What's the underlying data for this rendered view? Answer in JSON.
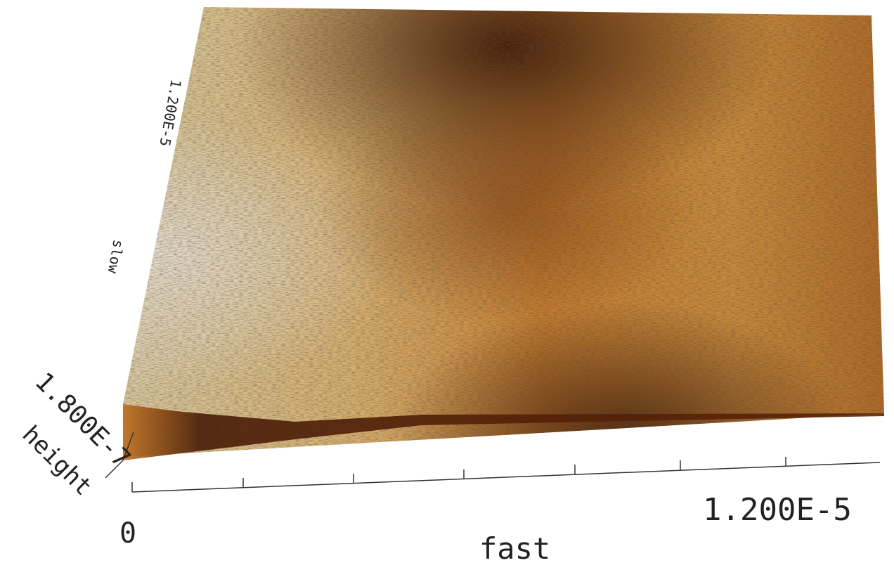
{
  "axes": {
    "fast": {
      "label": "fast",
      "ticks": [
        "0",
        "1.200E-5"
      ]
    },
    "slow": {
      "label": "slow",
      "tick": "1.200E-5"
    },
    "height": {
      "label": "height",
      "tick": "1.800E-7"
    }
  }
}
